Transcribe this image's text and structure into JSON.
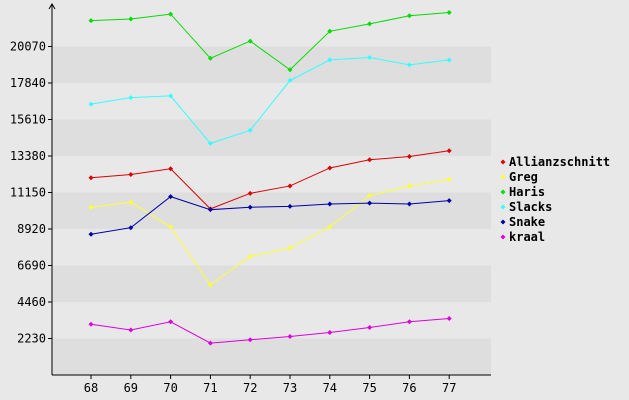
{
  "chart_data": {
    "type": "line",
    "title": "",
    "xlabel": "",
    "ylabel": "",
    "x": [
      "68",
      "69",
      "70",
      "71",
      "72",
      "73",
      "74",
      "75",
      "76",
      "77"
    ],
    "y_ticks": [
      "2230",
      "4460",
      "6690",
      "8920",
      "11150",
      "13380",
      "15610",
      "17840",
      "20070"
    ],
    "ylim": [
      0,
      22300
    ],
    "grid": "horizontal bands",
    "legend": "right",
    "series": [
      {
        "name": "Allianzschnitt",
        "color": "#dd0000",
        "values": [
          12050,
          12250,
          12600,
          10150,
          11100,
          11550,
          12650,
          13150,
          13350,
          13700
        ]
      },
      {
        "name": "Greg",
        "color": "#ffff33",
        "values": [
          10250,
          10550,
          9050,
          5500,
          7250,
          7750,
          9050,
          10950,
          11550,
          11950
        ]
      },
      {
        "name": "Haris",
        "color": "#00dd00",
        "values": [
          21650,
          21750,
          22050,
          19350,
          20400,
          18650,
          21000,
          21450,
          21950,
          22150
        ]
      },
      {
        "name": "Slacks",
        "color": "#33ffff",
        "values": [
          16550,
          16950,
          17050,
          14150,
          14950,
          18000,
          19250,
          19400,
          18950,
          19250
        ]
      },
      {
        "name": "Snake",
        "color": "#0000aa",
        "values": [
          8600,
          9000,
          10900,
          10100,
          10250,
          10300,
          10450,
          10500,
          10450,
          10650
        ]
      },
      {
        "name": "kraal",
        "color": "#dd00dd",
        "values": [
          3100,
          2750,
          3250,
          1950,
          2150,
          2350,
          2600,
          2900,
          3250,
          3450
        ]
      }
    ]
  }
}
